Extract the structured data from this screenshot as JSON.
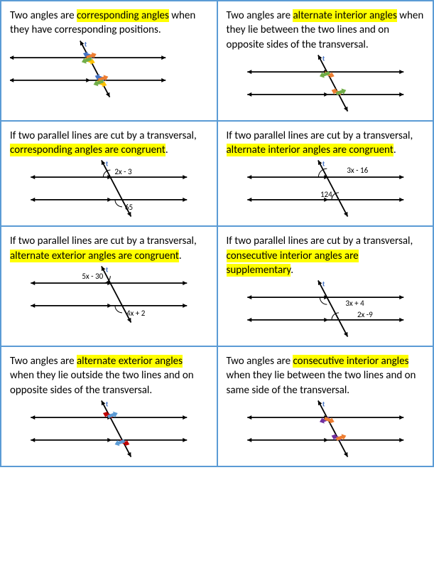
{
  "cells": [
    {
      "row": 1,
      "col": 1,
      "text_parts": [
        {
          "t": "Two angles are ",
          "hl": false
        },
        {
          "t": "corresponding angles",
          "hl": true
        },
        {
          "t": " when they have corresponding positions.",
          "hl": false
        }
      ],
      "diagram": {
        "type": "corresponding-arrows",
        "arrow_pairs": [
          {
            "color": "#4472c4",
            "pos": "top"
          },
          {
            "color": "#ed7d31",
            "pos": "upper"
          },
          {
            "color": "#70ad47",
            "pos": "lower"
          },
          {
            "color": "#ffc000",
            "pos": "bottom"
          }
        ]
      }
    },
    {
      "row": 1,
      "col": 2,
      "text_parts": [
        {
          "t": "Two angles are ",
          "hl": false
        },
        {
          "t": "alternate interior angles",
          "hl": true
        },
        {
          "t": " when they lie between the two lines and on opposite sides of the transversal.",
          "hl": false
        }
      ],
      "diagram": {
        "type": "alt-interior-arrows",
        "colors": [
          "#ed7d31",
          "#70ad47"
        ]
      }
    },
    {
      "row": 2,
      "col": 1,
      "text_parts": [
        {
          "t": "If two parallel lines are cut by a transversal, ",
          "hl": false
        },
        {
          "t": "corresponding angles are congruent",
          "hl": true
        },
        {
          "t": ".",
          "hl": false
        }
      ],
      "diagram": {
        "type": "labeled",
        "top_label": "2x - 3",
        "bottom_label": "65",
        "top_pos": "upper-right",
        "bottom_pos": "lower-right-below"
      }
    },
    {
      "row": 2,
      "col": 2,
      "text_parts": [
        {
          "t": "If two parallel lines are cut by a transversal, ",
          "hl": false
        },
        {
          "t": "alternate interior angles are congruent",
          "hl": true
        },
        {
          "t": ".",
          "hl": false
        }
      ],
      "diagram": {
        "type": "labeled",
        "top_label": "3x - 16",
        "bottom_label": "124",
        "top_pos": "far-upper-right",
        "bottom_pos": "lower-left"
      }
    },
    {
      "row": 3,
      "col": 1,
      "text_parts": [
        {
          "t": "If two parallel lines are cut by a transversal, ",
          "hl": false
        },
        {
          "t": "alternate exterior angles are congruent",
          "hl": true
        },
        {
          "t": ".",
          "hl": false
        }
      ],
      "diagram": {
        "type": "labeled",
        "top_label": "5x - 30",
        "bottom_label": "4x + 2",
        "top_pos": "above-upper-left",
        "bottom_pos": "below-lower-right"
      }
    },
    {
      "row": 3,
      "col": 2,
      "text_parts": [
        {
          "t": "If two parallel lines are cut by a transversal, ",
          "hl": false
        },
        {
          "t": "consecutive interior angles are supplementary",
          "hl": true
        },
        {
          "t": ".",
          "hl": false
        }
      ],
      "diagram": {
        "type": "labeled",
        "top_label": "3x + 4",
        "bottom_label": "2x -9",
        "top_pos": "far-upper-right-inside",
        "bottom_pos": "far-lower-right-inside"
      }
    },
    {
      "row": 4,
      "col": 1,
      "text_parts": [
        {
          "t": "Two angles are ",
          "hl": false
        },
        {
          "t": "alternate exterior angles",
          "hl": true
        },
        {
          "t": " when they lie outside the two lines and on opposite sides of the transversal.",
          "hl": false
        }
      ],
      "diagram": {
        "type": "alt-exterior-arrows",
        "colors": [
          "#c00000",
          "#5b9bd5"
        ]
      }
    },
    {
      "row": 4,
      "col": 2,
      "text_parts": [
        {
          "t": "Two angles are ",
          "hl": false
        },
        {
          "t": "consecutive interior angles",
          "hl": true
        },
        {
          "t": " when they lie between the two lines and on same side of the transversal.",
          "hl": false
        }
      ],
      "diagram": {
        "type": "consec-interior-arrows",
        "colors": [
          "#7030a0",
          "#ed7d31"
        ]
      }
    }
  ],
  "diagram_style": {
    "line_color": "#000000",
    "line_width": 1.8,
    "t_color": "#4472c4",
    "t_label": "t"
  }
}
